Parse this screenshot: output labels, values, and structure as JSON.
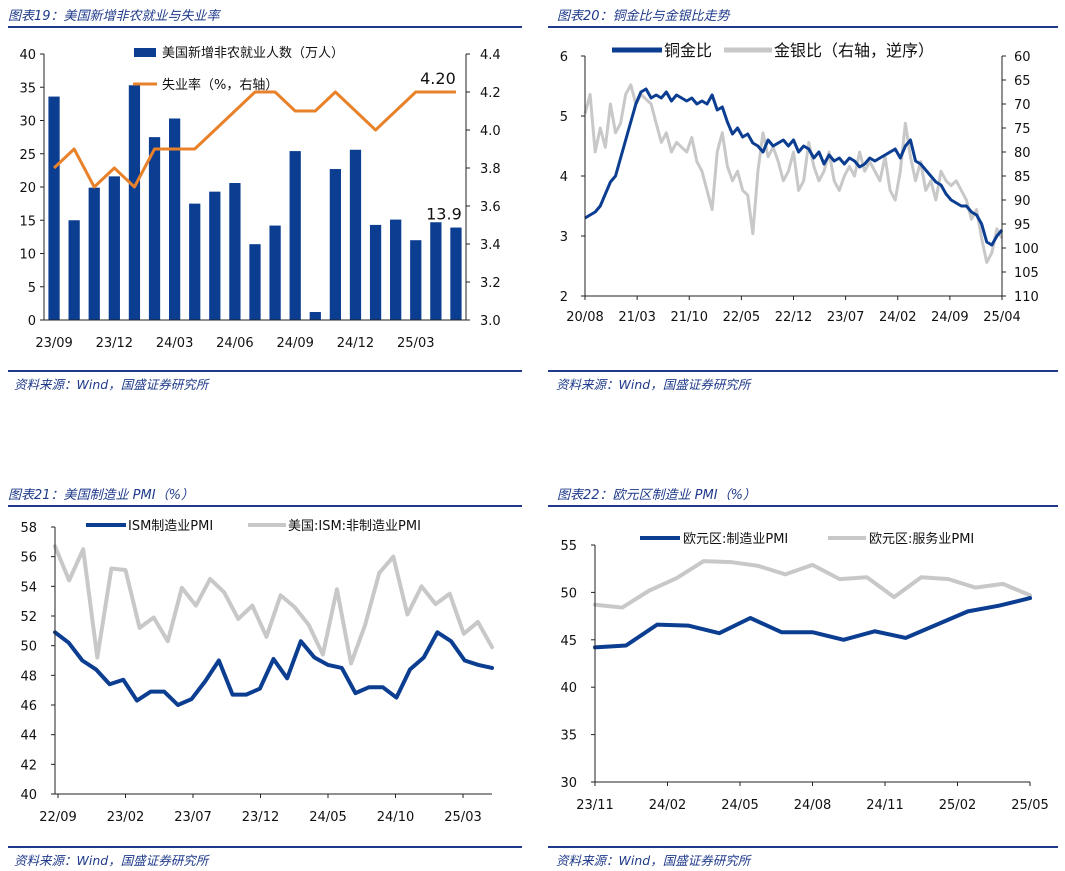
{
  "charts": [
    {
      "figure_title": "图表19：美国新增非农就业与失业率",
      "source": "资料来源：Wind，国盛证券研究所"
    },
    {
      "figure_title": "图表20：铜金比与金银比走势",
      "source": "资料来源：Wind，国盛证券研究所"
    },
    {
      "figure_title": "图表21：美国制造业 PMI（%）",
      "source": "资料来源：Wind，国盛证券研究所"
    },
    {
      "figure_title": "图表22：欧元区制造业 PMI（%）",
      "source": "资料来源：Wind，国盛证券研究所"
    }
  ],
  "colors": {
    "blue": "#0b3d91",
    "orange": "#e8822a",
    "gray": "#c8c8c8",
    "title": "#1f3a8a"
  },
  "chart_data": [
    {
      "type": "bar",
      "title": "美国新增非农就业与失业率",
      "categories": [
        "23/09",
        "23/10",
        "23/11",
        "23/12",
        "24/01",
        "24/02",
        "24/03",
        "24/04",
        "24/05",
        "24/06",
        "24/07",
        "24/08",
        "24/09",
        "24/10",
        "24/11",
        "24/12",
        "25/01",
        "25/02",
        "25/03",
        "25/04",
        "25/05"
      ],
      "tick_labels": [
        "23/09",
        "23/12",
        "24/03",
        "24/06",
        "24/09",
        "24/12",
        "25/03"
      ],
      "series": [
        {
          "name": "美国新增非农就业人数（万人）",
          "axis": "left",
          "type": "bar",
          "values": [
            33.6,
            15,
            19.9,
            21.6,
            35.3,
            27.5,
            30.3,
            17.5,
            19.3,
            20.6,
            11.4,
            14.2,
            25.4,
            1.2,
            22.7,
            25.6,
            14.3,
            15.1,
            12,
            14.7,
            13.9
          ]
        },
        {
          "name": "失业率（%，右轴）",
          "axis": "right",
          "type": "line",
          "values": [
            3.8,
            3.9,
            3.7,
            3.8,
            3.7,
            3.9,
            3.9,
            3.9,
            4.0,
            4.1,
            4.2,
            4.2,
            4.1,
            4.1,
            4.2,
            4.1,
            4.0,
            4.1,
            4.2,
            4.2,
            4.2
          ]
        }
      ],
      "ylim_left": [
        0,
        40
      ],
      "yticks_left": [
        "0",
        "5",
        "10",
        "15",
        "20",
        "25",
        "30",
        "35",
        "40"
      ],
      "ylim_right": [
        3.0,
        4.4
      ],
      "yticks_right": [
        "3.0",
        "3.2",
        "3.4",
        "3.6",
        "3.8",
        "4.0",
        "4.2",
        "4.4"
      ],
      "annotations": [
        "13.9",
        "4.20"
      ]
    },
    {
      "type": "line",
      "title": "铜金比与金银比走势",
      "x_tick_labels": [
        "20/08",
        "21/03",
        "21/10",
        "22/05",
        "22/12",
        "23/07",
        "24/02",
        "24/09",
        "25/04"
      ],
      "series": [
        {
          "name": "铜金比",
          "axis": "left",
          "values": [
            3.3,
            3.35,
            3.4,
            3.5,
            3.7,
            3.9,
            4.0,
            4.3,
            4.6,
            4.9,
            5.2,
            5.4,
            5.45,
            5.3,
            5.35,
            5.3,
            5.4,
            5.25,
            5.35,
            5.3,
            5.25,
            5.3,
            5.2,
            5.25,
            5.2,
            5.35,
            5.1,
            5.15,
            4.9,
            4.7,
            4.8,
            4.65,
            4.7,
            4.55,
            4.5,
            4.4,
            4.6,
            4.5,
            4.55,
            4.6,
            4.5,
            4.6,
            4.4,
            4.5,
            4.45,
            4.3,
            4.4,
            4.2,
            4.35,
            4.25,
            4.3,
            4.2,
            4.3,
            4.25,
            4.15,
            4.2,
            4.3,
            4.25,
            4.3,
            4.35,
            4.4,
            4.45,
            4.3,
            4.5,
            4.6,
            4.25,
            4.2,
            4.1,
            4.0,
            3.9,
            3.85,
            3.7,
            3.6,
            3.55,
            3.5,
            3.5,
            3.4,
            3.35,
            3.2,
            2.9,
            2.85,
            3.0,
            3.1
          ]
        },
        {
          "name": "金银比（右轴，逆序）",
          "axis": "right",
          "values": [
            72,
            68,
            80,
            75,
            79,
            70,
            76,
            74,
            68,
            66,
            70,
            68,
            69,
            70,
            74,
            78,
            76,
            80,
            78,
            79,
            80,
            77,
            82,
            84,
            88,
            92,
            80,
            76,
            83,
            86,
            84,
            88,
            89,
            97,
            84,
            76,
            81,
            79,
            82,
            86,
            84,
            80,
            88,
            86,
            78,
            83,
            86,
            84,
            80,
            86,
            88,
            85,
            83,
            85,
            80,
            84,
            82,
            84,
            86,
            81,
            88,
            90,
            84,
            74,
            81,
            86,
            82,
            88,
            86,
            90,
            84,
            86,
            87,
            86,
            88,
            90,
            94,
            92,
            98,
            103,
            101,
            96,
            98
          ]
        }
      ],
      "ylim_left": [
        2,
        6
      ],
      "yticks_left": [
        "2",
        "3",
        "4",
        "5",
        "6"
      ],
      "ylim_right_inverted": [
        60,
        110
      ],
      "yticks_right": [
        "60",
        "65",
        "70",
        "75",
        "80",
        "85",
        "90",
        "95",
        "100",
        "105",
        "110"
      ]
    },
    {
      "type": "line",
      "title": "美国制造业 PMI（%）",
      "x_tick_labels": [
        "22/09",
        "23/02",
        "23/07",
        "23/12",
        "24/05",
        "24/10",
        "25/03"
      ],
      "series": [
        {
          "name": "ISM制造业PMI",
          "values": [
            50.9,
            50.2,
            49.0,
            48.4,
            47.4,
            47.7,
            46.3,
            46.9,
            46.9,
            46.0,
            46.4,
            47.6,
            49.0,
            46.7,
            46.7,
            47.1,
            49.1,
            47.8,
            50.3,
            49.2,
            48.7,
            48.5,
            46.8,
            47.2,
            47.2,
            46.5,
            48.4,
            49.2,
            50.9,
            50.3,
            49.0,
            48.7,
            48.5
          ]
        },
        {
          "name": "美国:ISM:非制造业PMI",
          "values": [
            56.7,
            54.4,
            56.5,
            49.2,
            55.2,
            55.1,
            51.2,
            51.9,
            50.3,
            53.9,
            52.7,
            54.5,
            53.6,
            51.8,
            52.7,
            50.6,
            53.4,
            52.6,
            51.4,
            49.4,
            53.8,
            48.8,
            51.4,
            54.9,
            56.0,
            52.1,
            54.0,
            52.8,
            53.5,
            50.8,
            51.6,
            49.9
          ]
        }
      ],
      "ylim": [
        40,
        58
      ],
      "yticks": [
        "40",
        "42",
        "44",
        "46",
        "48",
        "50",
        "52",
        "54",
        "56",
        "58"
      ]
    },
    {
      "type": "line",
      "title": "欧元区制造业 PMI（%）",
      "x_tick_labels": [
        "23/11",
        "24/02",
        "24/05",
        "24/08",
        "24/11",
        "25/02",
        "25/05"
      ],
      "series": [
        {
          "name": "欧元区:制造业PMI",
          "values": [
            44.2,
            44.4,
            46.6,
            46.5,
            45.7,
            47.3,
            45.8,
            45.8,
            45.0,
            45.9,
            45.2,
            46.6,
            48.0,
            48.6,
            49.4
          ]
        },
        {
          "name": "欧元区:服务业PMI",
          "values": [
            48.7,
            48.4,
            50.2,
            51.5,
            53.3,
            53.2,
            52.8,
            51.9,
            52.9,
            51.4,
            51.6,
            49.5,
            51.6,
            51.4,
            50.5,
            50.9,
            49.7
          ]
        }
      ],
      "ylim": [
        30,
        55
      ],
      "yticks": [
        "30",
        "35",
        "40",
        "45",
        "50",
        "55"
      ]
    }
  ]
}
